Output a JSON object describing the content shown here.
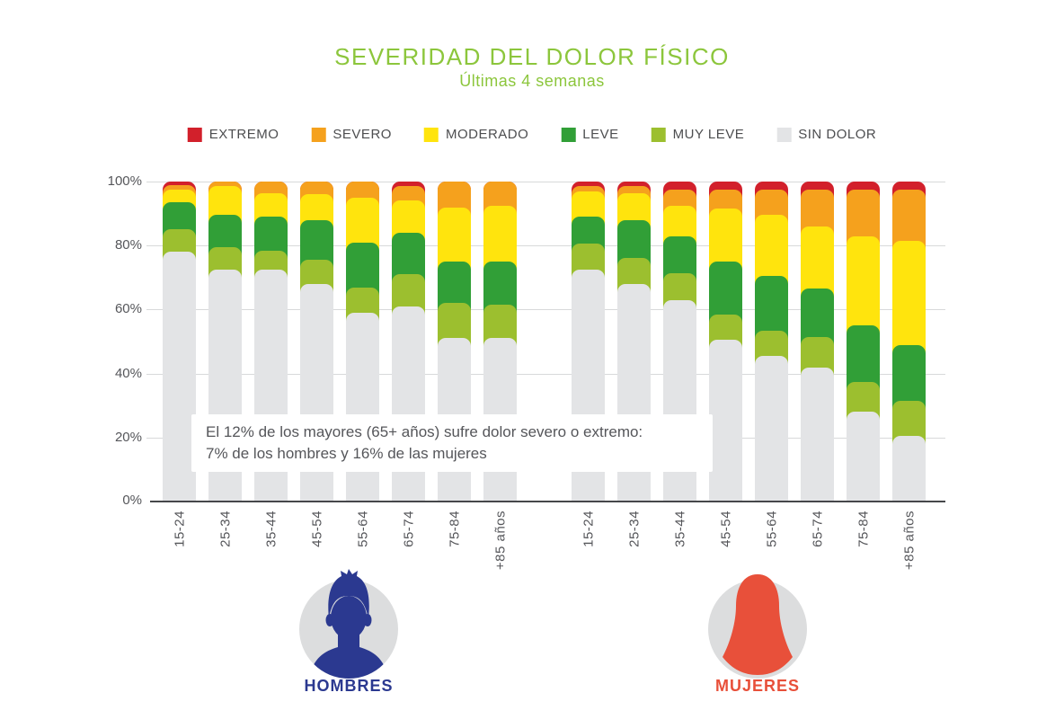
{
  "title": "SEVERIDAD DEL DOLOR FÍSICO",
  "subtitle": "Últimas 4 semanas",
  "legend": {
    "items": [
      {
        "key": "extremo",
        "label": "EXTREMO",
        "color": "#d2202b"
      },
      {
        "key": "severo",
        "label": "SEVERO",
        "color": "#f5a11d"
      },
      {
        "key": "moderado",
        "label": "MODERADO",
        "color": "#ffe40d"
      },
      {
        "key": "leve",
        "label": "LEVE",
        "color": "#319f37"
      },
      {
        "key": "muy_leve",
        "label": "MUY LEVE",
        "color": "#9cbf2f"
      },
      {
        "key": "sin_dolor",
        "label": "SIN DOLOR",
        "color": "#e3e4e6"
      }
    ]
  },
  "annotation": {
    "line1": "El 12% de los mayores (65+ años) sufre dolor severo o extremo:",
    "line2": "7% de los hombres y 16% de las mujeres"
  },
  "chart_data": {
    "type": "bar",
    "stacked": true,
    "value_unit": "%",
    "ylim": [
      0,
      100
    ],
    "grid": true,
    "y_ticks": [
      "100%",
      "80%",
      "60%",
      "40%",
      "20%",
      "0%"
    ],
    "categories": [
      "15-24",
      "25-34",
      "35-44",
      "45-54",
      "55-64",
      "65-74",
      "75-84",
      "+85 años"
    ],
    "stack_order_bottom_to_top": [
      "sin_dolor",
      "muy_leve",
      "leve",
      "moderado",
      "severo",
      "extremo"
    ],
    "groups": [
      {
        "key": "hombres",
        "label": "HOMBRES",
        "color": "#2b3990",
        "values": {
          "sin_dolor": [
            78,
            72.5,
            72.5,
            68,
            59,
            61,
            51,
            51
          ],
          "muy_leve": [
            7,
            7,
            6,
            7.5,
            8,
            10,
            11,
            10.5
          ],
          "leve": [
            8.5,
            10,
            10.5,
            12.5,
            14,
            13,
            13,
            13.5
          ],
          "moderado": [
            4,
            9,
            7.5,
            8,
            14,
            10,
            17,
            17.5
          ],
          "severo": [
            1.5,
            1.5,
            3.5,
            4,
            5,
            4.5,
            8,
            7.5
          ],
          "extremo": [
            1,
            0,
            0,
            0,
            0,
            1.5,
            0,
            0
          ]
        }
      },
      {
        "key": "mujeres",
        "label": "MUJERES",
        "color": "#e8503a",
        "values": {
          "sin_dolor": [
            72.5,
            68,
            63,
            50.5,
            45.5,
            42,
            28,
            20.5
          ],
          "muy_leve": [
            8,
            8,
            8.5,
            8,
            8,
            9.5,
            9.5,
            11
          ],
          "leve": [
            8.5,
            12,
            11.5,
            16.5,
            17,
            15,
            17.5,
            17.5
          ],
          "moderado": [
            8,
            8.5,
            9.5,
            16.5,
            19,
            19.5,
            28,
            32.5
          ],
          "severo": [
            1.5,
            2,
            5,
            6,
            8,
            11.5,
            14.5,
            16
          ],
          "extremo": [
            1.5,
            1.5,
            2.5,
            2.5,
            2.5,
            2.5,
            2.5,
            2.5
          ]
        }
      }
    ]
  }
}
